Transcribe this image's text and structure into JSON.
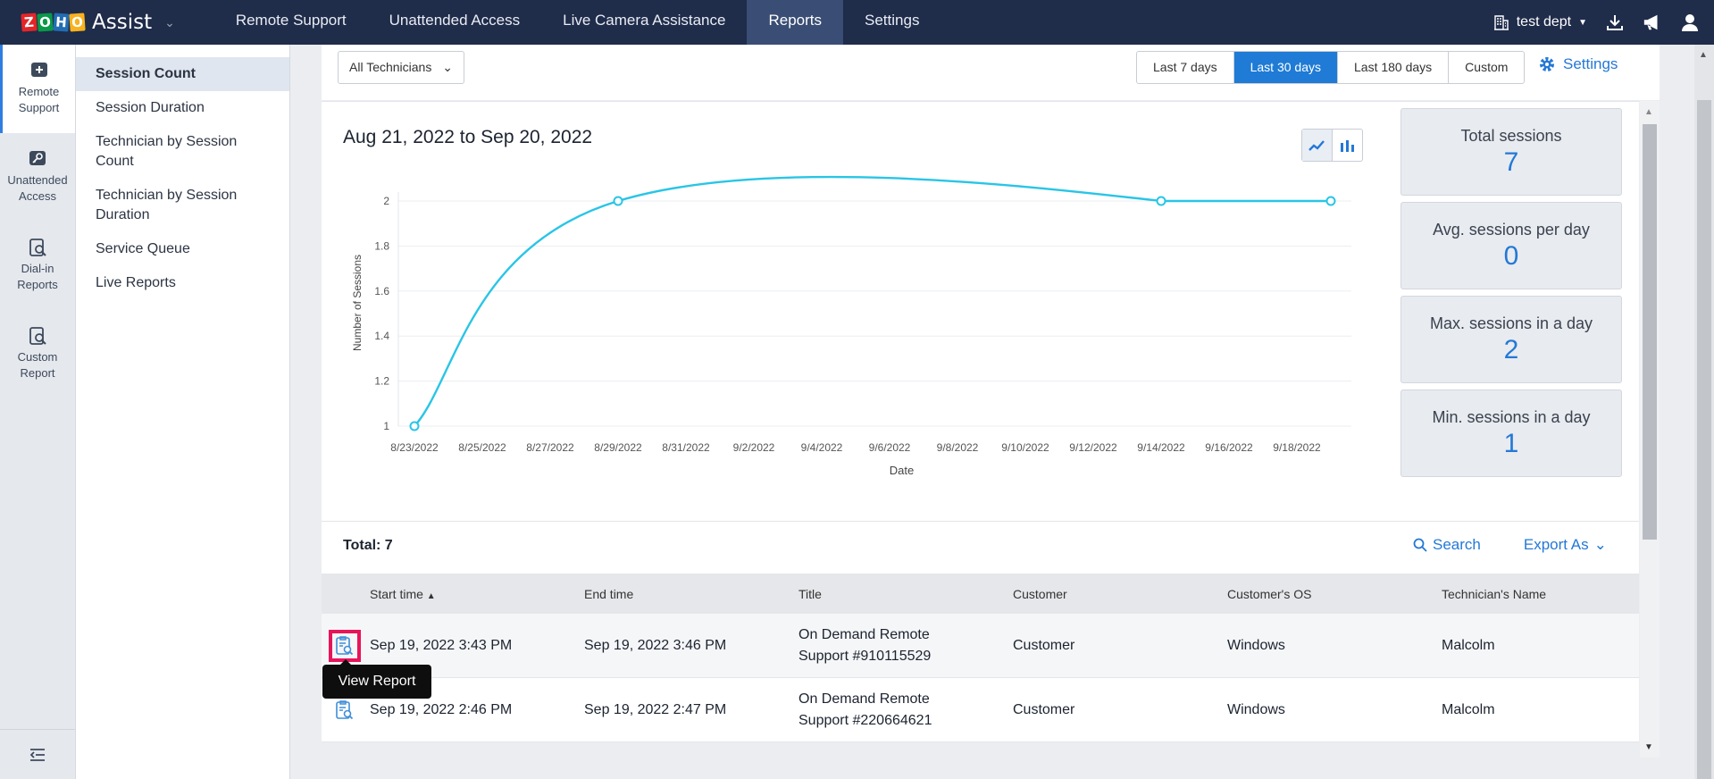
{
  "app": {
    "brand_letters": [
      "Z",
      "O",
      "H",
      "O"
    ],
    "product": "Assist"
  },
  "topnav": {
    "tabs": [
      {
        "label": "Remote Support",
        "active": false
      },
      {
        "label": "Unattended Access",
        "active": false
      },
      {
        "label": "Live Camera Assistance",
        "active": false
      },
      {
        "label": "Reports",
        "active": true
      },
      {
        "label": "Settings",
        "active": false
      }
    ],
    "org_name": "test dept"
  },
  "rail": {
    "items": [
      {
        "label": "Remote Support",
        "icon": "plus-icon",
        "active": true
      },
      {
        "label": "Unattended Access",
        "icon": "key-icon",
        "active": false
      },
      {
        "label": "Dial-in Reports",
        "icon": "report-search-icon",
        "active": false
      },
      {
        "label": "Custom Report",
        "icon": "report-search-icon",
        "active": false
      }
    ]
  },
  "subnav": {
    "items": [
      {
        "label": "Session Count",
        "active": true
      },
      {
        "label": "Session Duration",
        "active": false
      },
      {
        "label": "Technician by Session Count",
        "active": false
      },
      {
        "label": "Technician by Session Duration",
        "active": false
      },
      {
        "label": "Service Queue",
        "active": false
      },
      {
        "label": "Live Reports",
        "active": false
      }
    ]
  },
  "toolbar": {
    "technician_filter": "All Technicians",
    "ranges": [
      {
        "label": "Last 7 days",
        "active": false
      },
      {
        "label": "Last 30 days",
        "active": true
      },
      {
        "label": "Last 180 days",
        "active": false
      },
      {
        "label": "Custom",
        "active": false
      }
    ],
    "settings_label": "Settings"
  },
  "report": {
    "date_range": "Aug 21, 2022 to Sep 20, 2022"
  },
  "chart_data": {
    "type": "line",
    "xlabel": "Date",
    "ylabel": "Number of Sessions",
    "x_ticks": [
      "8/23/2022",
      "8/25/2022",
      "8/27/2022",
      "8/29/2022",
      "8/31/2022",
      "9/2/2022",
      "9/4/2022",
      "9/6/2022",
      "9/8/2022",
      "9/10/2022",
      "9/12/2022",
      "9/14/2022",
      "9/16/2022",
      "9/18/2022"
    ],
    "y_ticks": [
      1,
      1.2,
      1.4,
      1.6,
      1.8,
      2
    ],
    "ylim": [
      1,
      2
    ],
    "xlim": [
      "8/23/2022",
      "9/19/2022"
    ],
    "points": [
      {
        "x": "8/23/2022",
        "y": 1
      },
      {
        "x": "8/29/2022",
        "y": 2
      },
      {
        "x": "9/14/2022",
        "y": 2
      },
      {
        "x": "9/19/2022",
        "y": 2
      }
    ],
    "smooth": true,
    "grid": true,
    "line_color": "#29c5e6"
  },
  "stats": [
    {
      "label": "Total sessions",
      "value": "7"
    },
    {
      "label": "Avg. sessions per day",
      "value": "0"
    },
    {
      "label": "Max. sessions in a day",
      "value": "2"
    },
    {
      "label": "Min. sessions in a day",
      "value": "1"
    }
  ],
  "table": {
    "total_label": "Total: 7",
    "search_label": "Search",
    "export_label": "Export As",
    "columns": [
      "Start time",
      "End time",
      "Title",
      "Customer",
      "Customer's OS",
      "Technician's Name"
    ],
    "rows": [
      {
        "start": "Sep 19, 2022 3:43 PM",
        "end": "Sep 19, 2022 3:46 PM",
        "title_line1": "On Demand Remote",
        "title_line2": "Support #910115529",
        "customer": "Customer",
        "os": "Windows",
        "technician": "Malcolm"
      },
      {
        "start": "Sep 19, 2022 2:46 PM",
        "end": "Sep 19, 2022 2:47 PM",
        "title_line1": "On Demand Remote",
        "title_line2": "Support #220664621",
        "customer": "Customer",
        "os": "Windows",
        "technician": "Malcolm"
      }
    ],
    "tooltip": "View Report"
  }
}
